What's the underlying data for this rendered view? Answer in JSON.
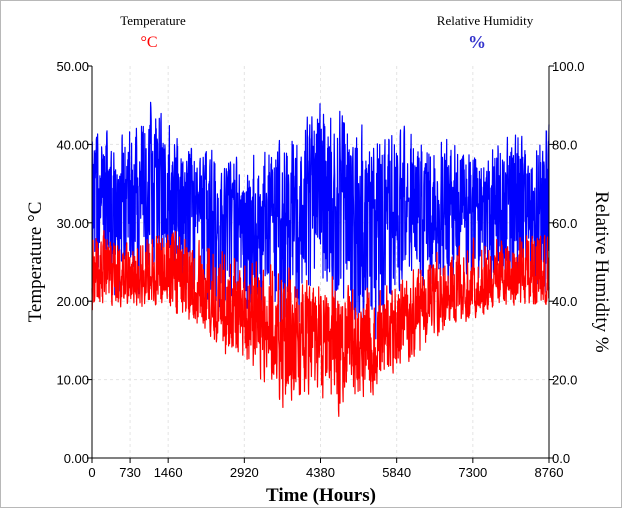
{
  "chart_data": {
    "type": "line",
    "xlabel": "Time (Hours)",
    "xlim": [
      0,
      8760
    ],
    "x_ticks": [
      0,
      730,
      1460,
      2920,
      4380,
      5840,
      7300,
      8760
    ],
    "x_tick_labels": [
      "0",
      "730",
      "1460",
      "2920",
      "4380",
      "5840",
      "7300",
      "8760"
    ],
    "left_axis": {
      "label": "Temperature °C",
      "ylim": [
        0,
        50
      ],
      "ticks": [
        0,
        10,
        20,
        30,
        40,
        50
      ],
      "tick_labels": [
        "0.00",
        "10.00",
        "20.00",
        "30.00",
        "40.00",
        "50.00"
      ]
    },
    "right_axis": {
      "label": "Relative Humidity %",
      "ylim": [
        0,
        100
      ],
      "ticks": [
        0,
        20,
        40,
        60,
        80,
        100
      ],
      "tick_labels": [
        "0.0",
        "20.0",
        "40.0",
        "60.0",
        "80.0",
        "100.0"
      ]
    },
    "legend": {
      "placement": "top",
      "entries": [
        {
          "name": "Temperature",
          "unit": "°C",
          "color": "#ff0000"
        },
        {
          "name": "Relative Humidity",
          "unit": "%",
          "color": "#0000ff"
        }
      ]
    },
    "grid": true,
    "series": [
      {
        "name": "Relative Humidity",
        "axis": "right",
        "color": "#0000ff",
        "x": [
          0,
          365,
          730,
          1095,
          1460,
          1825,
          2190,
          2555,
          2920,
          3285,
          3650,
          4015,
          4380,
          4745,
          5110,
          5475,
          5840,
          6205,
          6570,
          6935,
          7300,
          7665,
          8030,
          8395,
          8760
        ],
        "y_center": [
          68,
          67,
          69,
          70,
          70,
          68,
          66,
          64,
          62,
          62,
          64,
          66,
          74,
          70,
          62,
          60,
          62,
          62,
          60,
          60,
          62,
          62,
          64,
          64,
          66
        ],
        "y_low": [
          42,
          38,
          40,
          42,
          44,
          36,
          34,
          32,
          30,
          32,
          26,
          34,
          38,
          28,
          30,
          26,
          40,
          44,
          40,
          42,
          42,
          40,
          40,
          38,
          40
        ],
        "y_high": [
          86,
          84,
          88,
          94,
          86,
          80,
          80,
          78,
          78,
          80,
          82,
          86,
          94,
          92,
          88,
          84,
          86,
          84,
          86,
          82,
          80,
          82,
          84,
          84,
          86
        ]
      },
      {
        "name": "Temperature",
        "axis": "left",
        "color": "#ff0000",
        "x": [
          0,
          365,
          730,
          1095,
          1460,
          1825,
          2190,
          2555,
          2920,
          3285,
          3650,
          4015,
          4380,
          4745,
          5110,
          5475,
          5840,
          6205,
          6570,
          6935,
          7300,
          7665,
          8030,
          8395,
          8760
        ],
        "y_center": [
          24,
          23,
          22,
          22,
          23,
          21,
          20,
          18,
          17,
          16,
          14,
          15,
          14,
          14,
          13,
          14,
          16,
          18,
          19,
          20,
          21,
          22,
          22,
          22,
          23
        ],
        "y_low": [
          18,
          19,
          19,
          19,
          18,
          16,
          15,
          12,
          11,
          9,
          5,
          7,
          6,
          5,
          7,
          8,
          10,
          12,
          15,
          16,
          17,
          18,
          19,
          18,
          19
        ],
        "y_high": [
          30,
          29,
          27,
          29,
          31,
          29,
          28,
          27,
          25,
          26,
          25,
          24,
          23,
          24,
          23,
          22,
          23,
          25,
          26,
          27,
          28,
          29,
          28,
          29,
          30
        ]
      }
    ]
  }
}
